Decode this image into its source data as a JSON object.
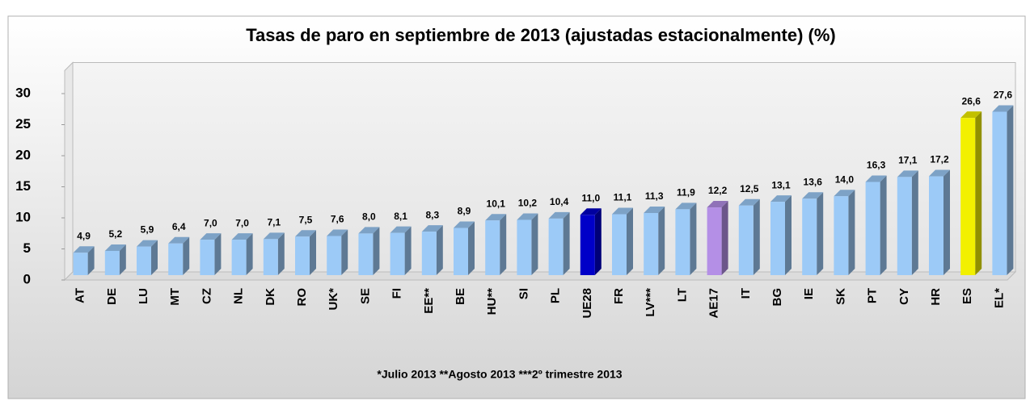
{
  "chart_data": {
    "type": "bar3d",
    "title": "Tasas de paro en septiembre de 2013 (ajustadas estacionalmente) (%)",
    "categories": [
      "AT",
      "DE",
      "LU",
      "MT",
      "CZ",
      "NL",
      "DK",
      "RO",
      "UK*",
      "SE",
      "FI",
      "EE**",
      "BE",
      "HU**",
      "SI",
      "PL",
      "UE28",
      "FR",
      "LV***",
      "LT",
      "AE17",
      "IT",
      "BG",
      "IE",
      "SK",
      "PT",
      "CY",
      "HR",
      "ES",
      "EL*"
    ],
    "values": [
      4.9,
      5.2,
      5.9,
      6.4,
      7.0,
      7.0,
      7.1,
      7.5,
      7.6,
      8.0,
      8.1,
      8.3,
      8.9,
      10.1,
      10.2,
      10.4,
      11.0,
      11.1,
      11.3,
      11.9,
      12.2,
      12.5,
      13.1,
      13.6,
      14.0,
      16.3,
      17.1,
      17.2,
      26.6,
      27.6
    ],
    "value_labels": [
      "4,9",
      "5,2",
      "5,9",
      "6,4",
      "7,0",
      "7,0",
      "7,1",
      "7,5",
      "7,6",
      "8,0",
      "8,1",
      "8,3",
      "8,9",
      "10,1",
      "10,2",
      "10,4",
      "11,0",
      "11,1",
      "11,3",
      "11,9",
      "12,2",
      "12,5",
      "13,1",
      "13,6",
      "14,0",
      "16,3",
      "17,1",
      "17,2",
      "26,6",
      "27,6"
    ],
    "colors": [
      "#9ccaf7",
      "#9ccaf7",
      "#9ccaf7",
      "#9ccaf7",
      "#9ccaf7",
      "#9ccaf7",
      "#9ccaf7",
      "#9ccaf7",
      "#9ccaf7",
      "#9ccaf7",
      "#9ccaf7",
      "#9ccaf7",
      "#9ccaf7",
      "#9ccaf7",
      "#9ccaf7",
      "#9ccaf7",
      "#0000c8",
      "#9ccaf7",
      "#9ccaf7",
      "#9ccaf7",
      "#b48fe6",
      "#9ccaf7",
      "#9ccaf7",
      "#9ccaf7",
      "#9ccaf7",
      "#9ccaf7",
      "#9ccaf7",
      "#9ccaf7",
      "#f2f000",
      "#9ccaf7"
    ],
    "ylim": [
      0,
      35
    ],
    "yticks": [
      0,
      5,
      10,
      15,
      20,
      25,
      30
    ],
    "note": "*Julio 2013  **Agosto 2013   ***2º trimestre 2013"
  }
}
